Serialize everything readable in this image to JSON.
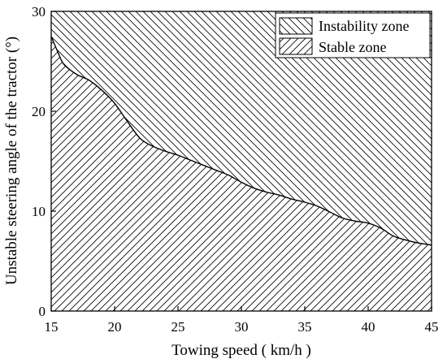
{
  "chart_data": {
    "type": "area",
    "title": "",
    "xlabel": "Towing speed ( km/h )",
    "ylabel": "Unstable steering angle of the tractor (°)",
    "xlim": [
      15,
      45
    ],
    "ylim": [
      0,
      30
    ],
    "xticks": [
      15,
      20,
      25,
      30,
      35,
      40,
      45
    ],
    "yticks": [
      0,
      10,
      20,
      30
    ],
    "grid": false,
    "legend_position": "top-right",
    "legend": [
      {
        "label": "Instability zone",
        "hatch": "backslash"
      },
      {
        "label": "Stable zone",
        "hatch": "forward-slash"
      }
    ],
    "series": [
      {
        "name": "Stable zone",
        "x": [
          15,
          15.5,
          16,
          17,
          18,
          19,
          20,
          21,
          22,
          23,
          24,
          25,
          26,
          27,
          28,
          29,
          30,
          31,
          32,
          33,
          34,
          35,
          36,
          37,
          38,
          39,
          40,
          41,
          42,
          43,
          44,
          45
        ],
        "y": [
          27.5,
          26.0,
          24.7,
          23.7,
          23.1,
          22.1,
          20.8,
          19.0,
          17.3,
          16.5,
          16.0,
          15.6,
          15.1,
          14.6,
          14.1,
          13.6,
          12.9,
          12.3,
          11.9,
          11.6,
          11.2,
          10.9,
          10.5,
          9.9,
          9.3,
          9.0,
          8.8,
          8.3,
          7.5,
          7.1,
          6.8,
          6.6
        ]
      }
    ]
  }
}
